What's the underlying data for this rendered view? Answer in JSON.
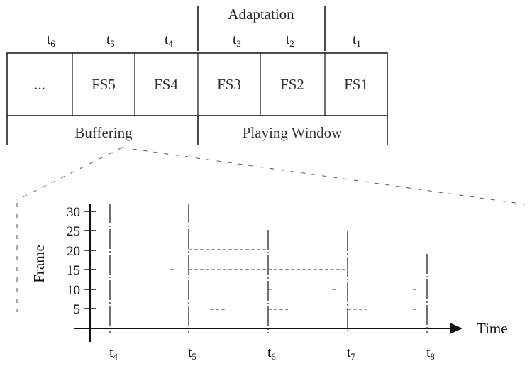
{
  "top_diagram": {
    "adaptation_label": "Adaptation",
    "buffering_label": "Buffering",
    "playing_window_label": "Playing Window",
    "time_labels": [
      {
        "base": "t",
        "sub": "6"
      },
      {
        "base": "t",
        "sub": "5"
      },
      {
        "base": "t",
        "sub": "4"
      },
      {
        "base": "t",
        "sub": "3"
      },
      {
        "base": "t",
        "sub": "2"
      },
      {
        "base": "t",
        "sub": "1"
      }
    ],
    "cells": [
      "...",
      "FS5",
      "FS4",
      "FS3",
      "FS2",
      "FS1"
    ]
  },
  "bottom_diagram": {
    "ylabel": "Frame",
    "xlabel": "Time",
    "y_ticks": [
      "5",
      "10",
      "15",
      "20",
      "25",
      "30"
    ],
    "x_ticks": [
      {
        "base": "t",
        "sub": "4"
      },
      {
        "base": "t",
        "sub": "5"
      },
      {
        "base": "t",
        "sub": "6"
      },
      {
        "base": "t",
        "sub": "7"
      },
      {
        "base": "t",
        "sub": "8"
      }
    ]
  }
}
